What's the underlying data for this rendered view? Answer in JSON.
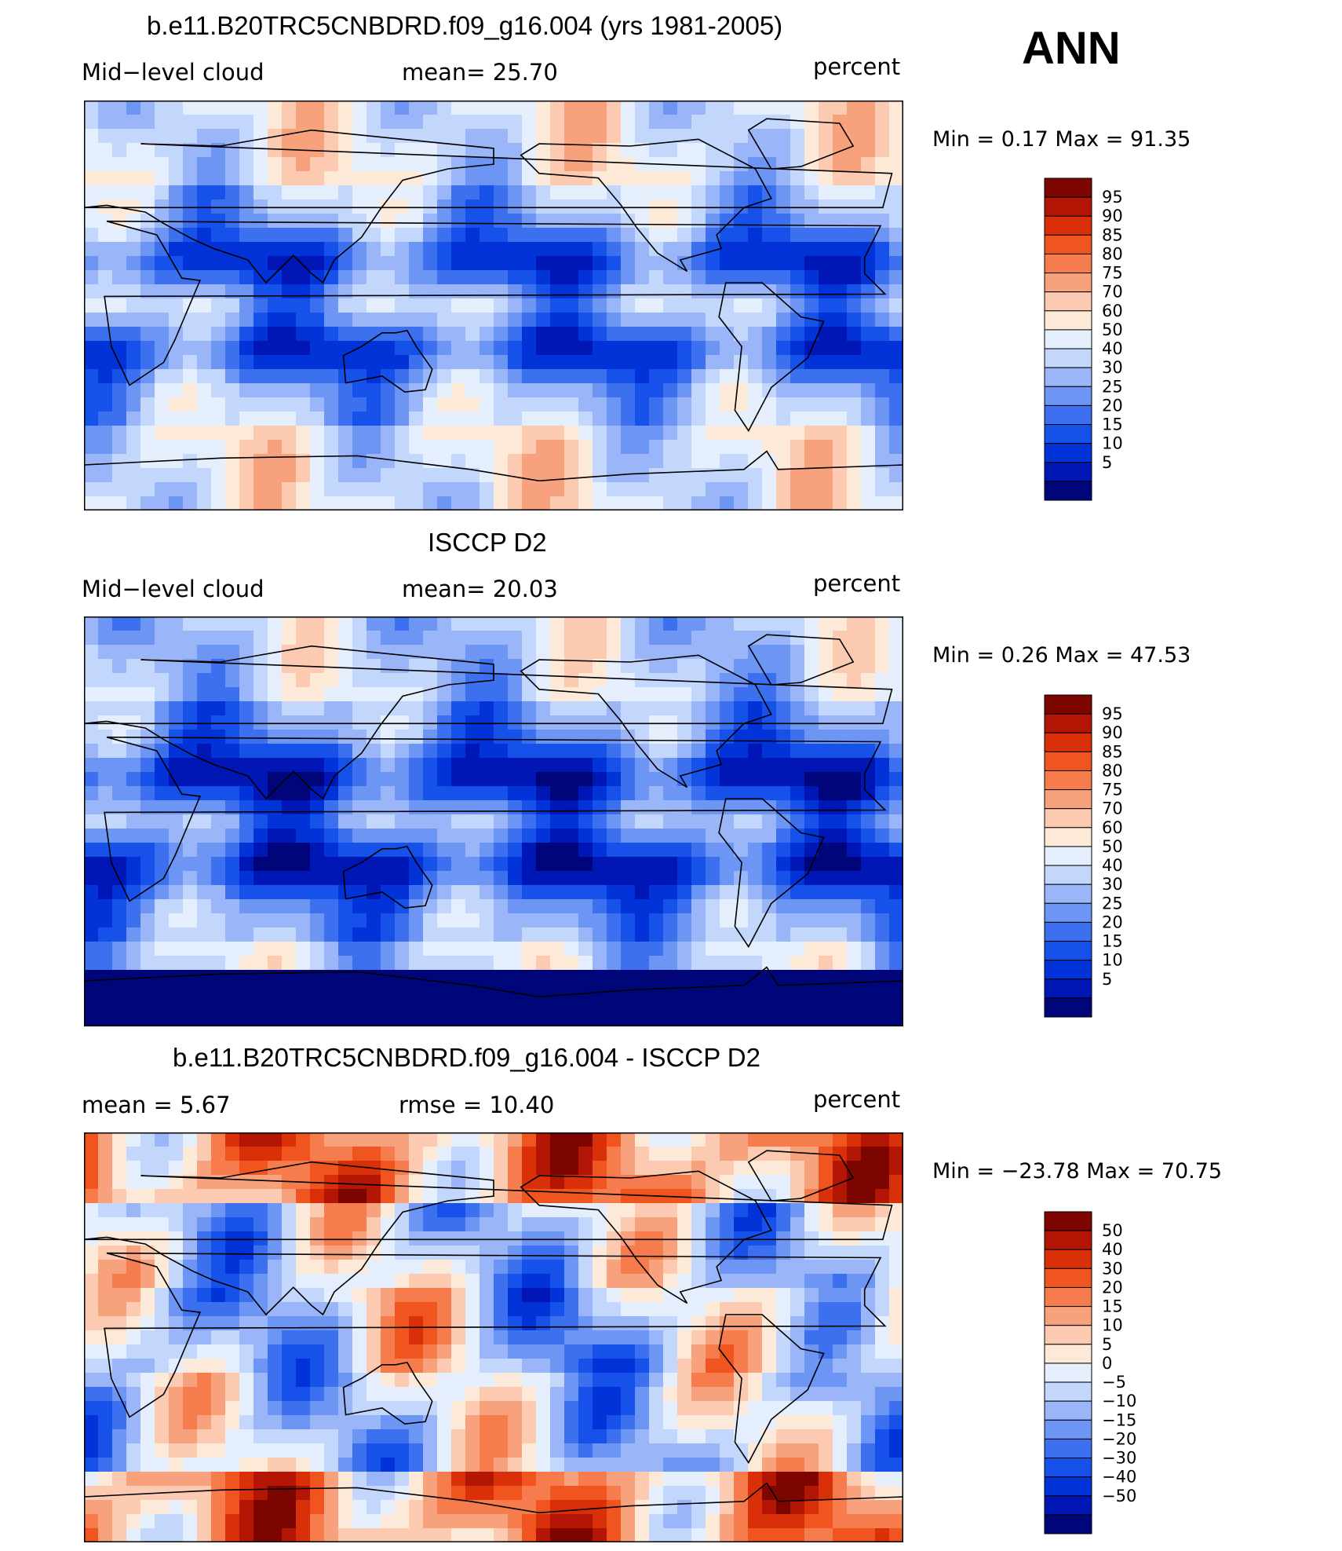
{
  "season": "ANN",
  "colors": {
    "mean_scale": [
      "#00067a",
      "#0016b5",
      "#0133d9",
      "#1652e9",
      "#3c70ee",
      "#6d96f4",
      "#9ab6f8",
      "#c3d6fb",
      "#e4eefc",
      "#fce9d7",
      "#fbcab0",
      "#f8a27d",
      "#f67c4d",
      "#f0541f",
      "#d9300a",
      "#b41606",
      "#7d0500"
    ],
    "diff_scale": [
      "#00067a",
      "#0016b5",
      "#0133d9",
      "#1652e9",
      "#3c70ee",
      "#6d96f4",
      "#9ab6f8",
      "#c3d6fb",
      "#e4eefc",
      "#fce9d7",
      "#fbcab0",
      "#f8a27d",
      "#f67c4d",
      "#f0541f",
      "#d9300a",
      "#b41606",
      "#7d0500"
    ]
  },
  "panels": [
    {
      "title": "b.e11.B20TRC5CNBDRD.f09_g16.004 (yrs 1981-2005)",
      "left_label": "Mid−level cloud",
      "center_label": "mean=   25.70",
      "units": "percent",
      "minmax": "Min =    0.17  Max =   91.35",
      "levels": [
        "95",
        "90",
        "85",
        "80",
        "75",
        "70",
        "60",
        "50",
        "40",
        "30",
        "25",
        "20",
        "15",
        "10",
        "5"
      ],
      "field_type": "model"
    },
    {
      "title": "ISCCP D2",
      "left_label": "Mid−level cloud",
      "center_label": "mean=   20.03",
      "units": "percent",
      "minmax": "Min =    0.26  Max =   47.53",
      "levels": [
        "95",
        "90",
        "85",
        "80",
        "75",
        "70",
        "60",
        "50",
        "40",
        "30",
        "25",
        "20",
        "15",
        "10",
        "5"
      ],
      "field_type": "obs"
    },
    {
      "title": "b.e11.B20TRC5CNBDRD.f09_g16.004 - ISCCP D2",
      "left_label": "mean =      5.67",
      "center_label": "rmse  =    10.40",
      "units": "percent",
      "minmax": "Min = −23.78  Max =   70.75",
      "levels": [
        "50",
        "40",
        "30",
        "20",
        "15",
        "10",
        "5",
        "0",
        "−5",
        "−10",
        "−15",
        "−20",
        "−30",
        "−40",
        "−50"
      ],
      "field_type": "diff"
    }
  ]
}
